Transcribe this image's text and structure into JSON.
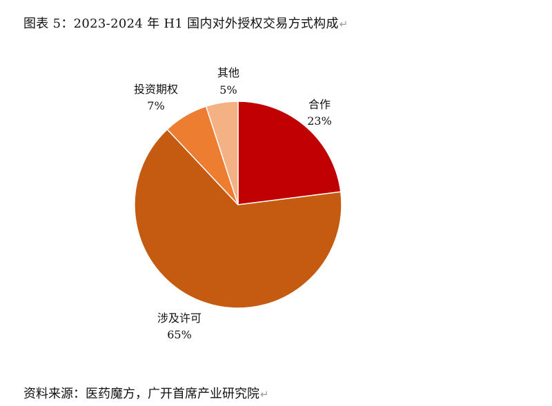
{
  "figure": {
    "title": "图表 5：2023-2024 年 H1 国内对外授权交易方式构成",
    "source": "资料来源：医药魔方，广开首席产业研究院"
  },
  "chart_data": {
    "type": "pie",
    "start_angle_deg": 0,
    "direction": "clockwise",
    "slices": [
      {
        "name": "合作",
        "value": 23,
        "label": "23%",
        "color": "#C00000"
      },
      {
        "name": "涉及许可",
        "value": 65,
        "label": "65%",
        "color": "#C55A11"
      },
      {
        "name": "投资期权",
        "value": 7,
        "label": "7%",
        "color": "#ED7D31"
      },
      {
        "name": "其他",
        "value": 5,
        "label": "5%",
        "color": "#F4B183"
      }
    ],
    "legend": "none"
  }
}
